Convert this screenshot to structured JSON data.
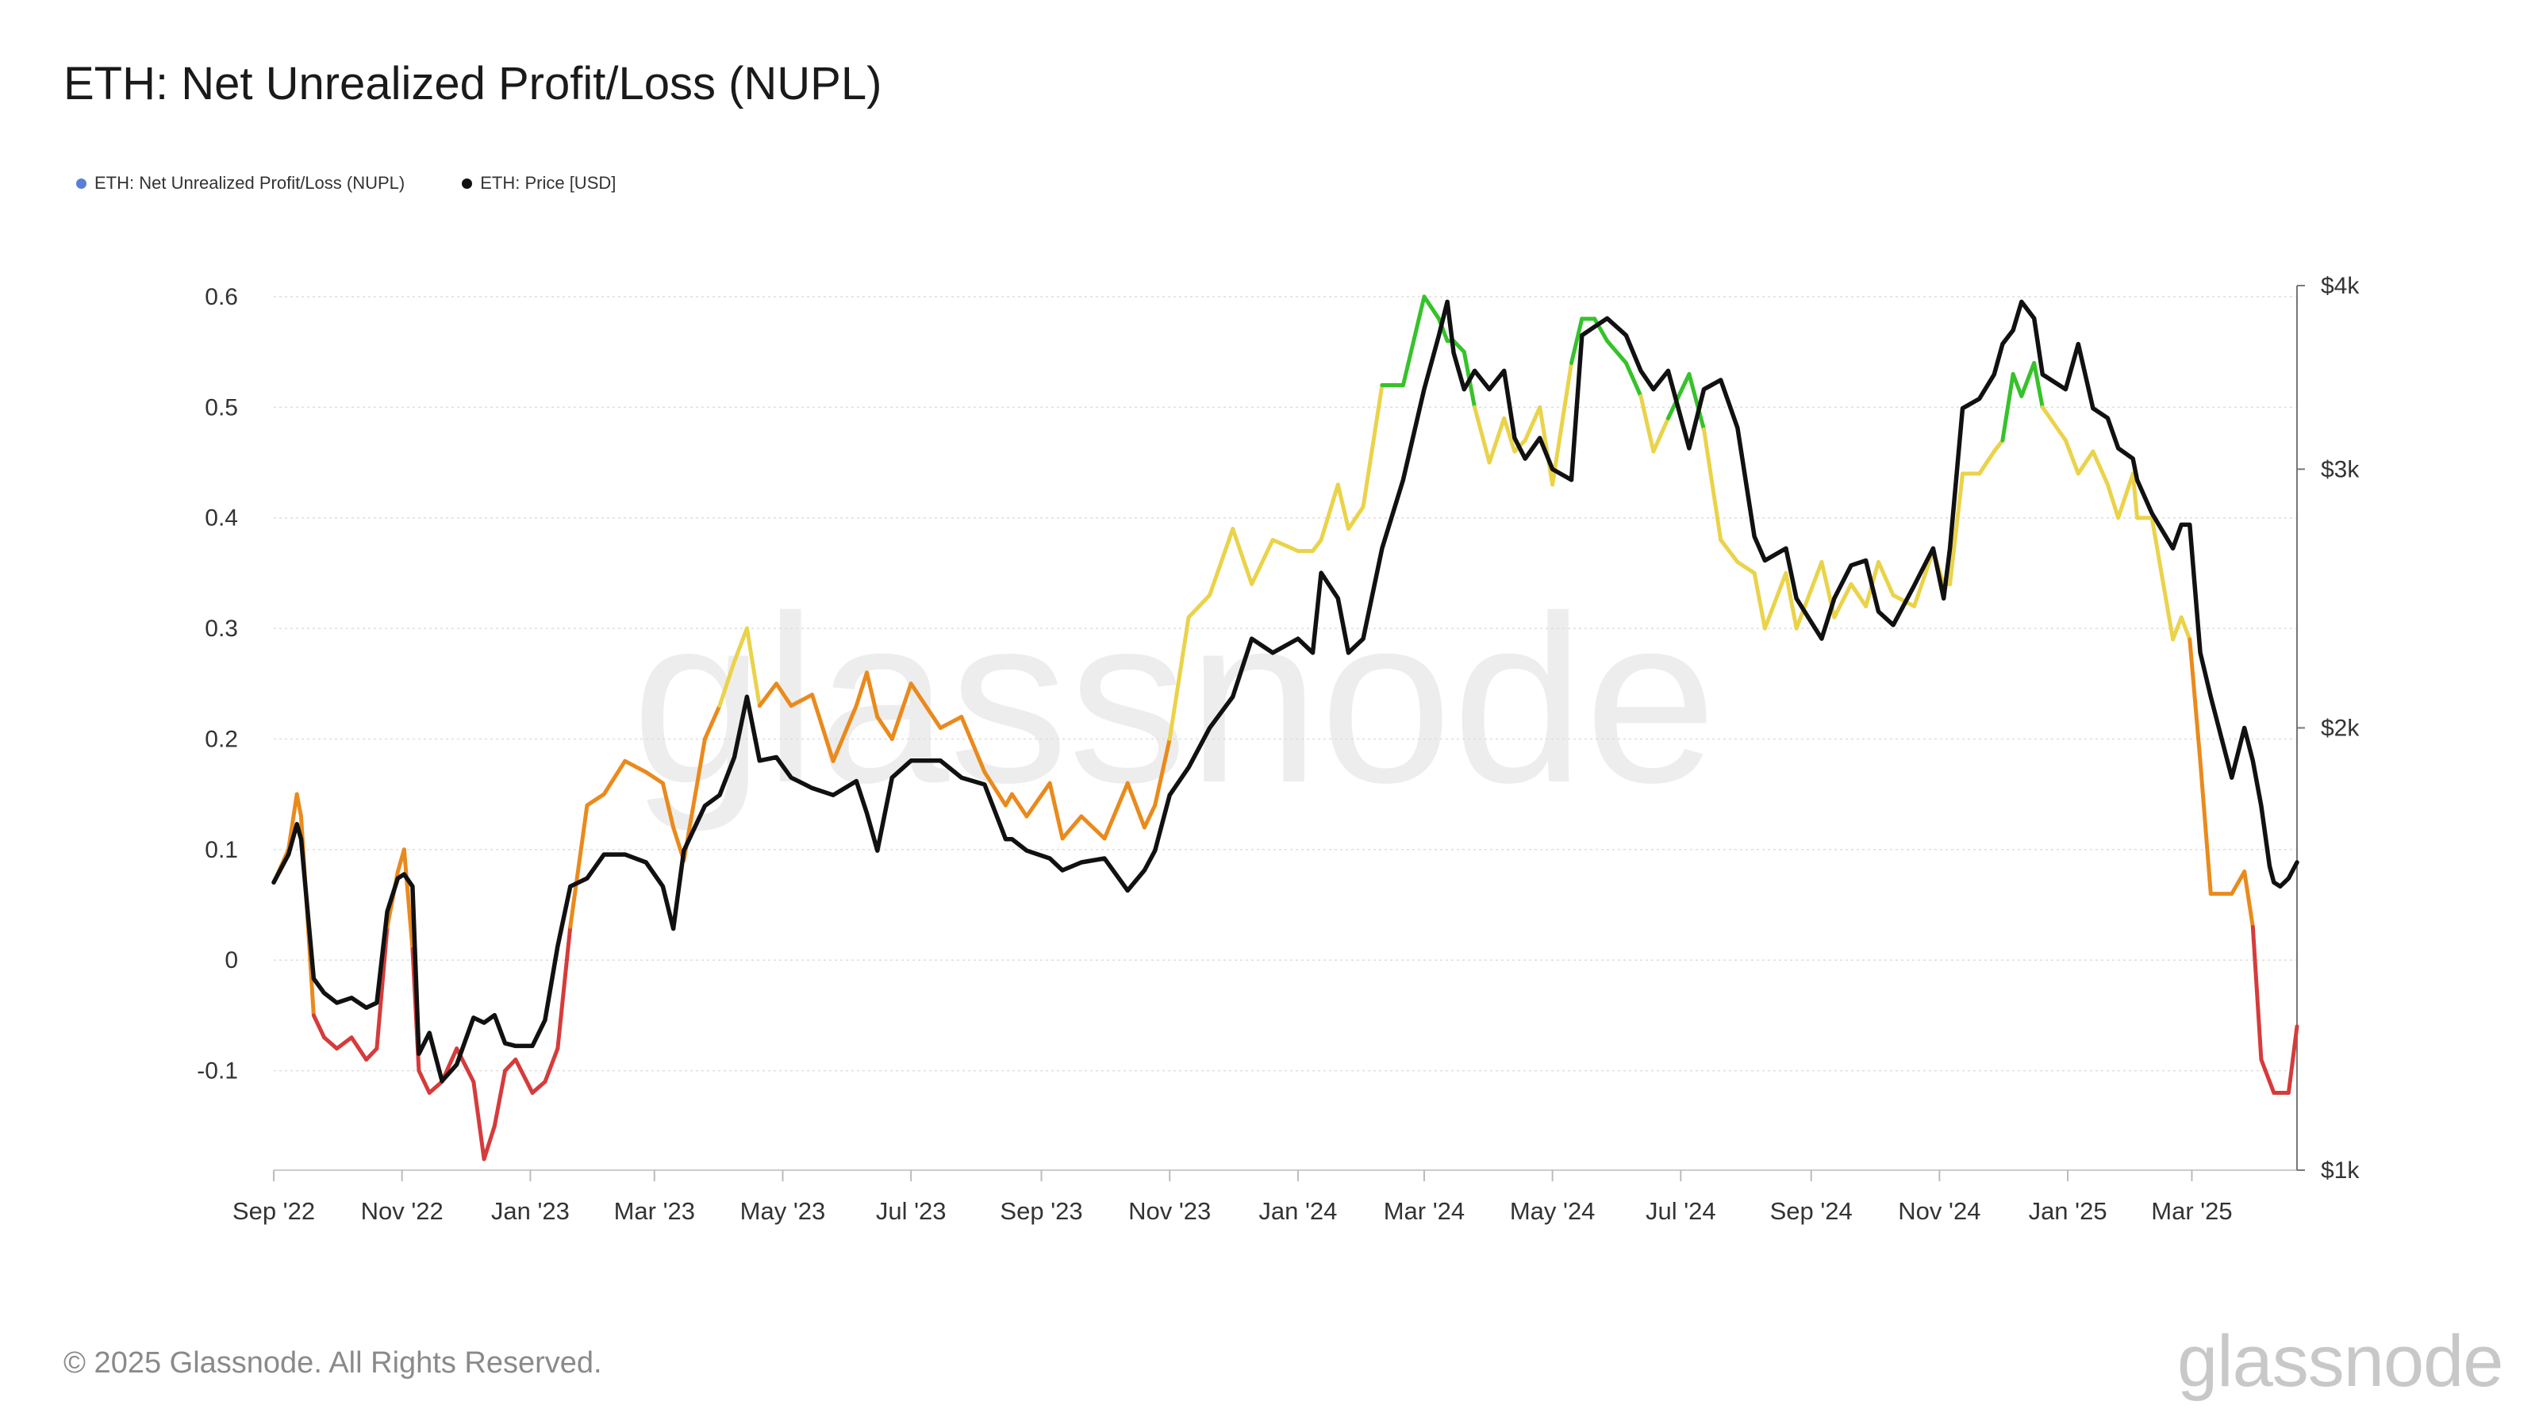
{
  "title": "ETH: Net Unrealized Profit/Loss (NUPL)",
  "legend": [
    {
      "label": "ETH: Net Unrealized Profit/Loss (NUPL)",
      "color": "#5b7fd6"
    },
    {
      "label": "ETH: Price [USD]",
      "color": "#111111"
    }
  ],
  "watermark": "glassnode",
  "copyright": "© 2025 Glassnode. All Rights Reserved.",
  "brand_logo": "glassnode",
  "chart_data": {
    "type": "line",
    "y_left": {
      "ticks": [
        -0.1,
        0,
        0.1,
        0.2,
        0.3,
        0.4,
        0.5,
        0.6
      ],
      "tick_labels": [
        "-0.1",
        "0",
        "0.1",
        "0.2",
        "0.3",
        "0.4",
        "0.5",
        "0.6"
      ],
      "range": [
        -0.19,
        0.61
      ]
    },
    "y_right": {
      "scale": "log",
      "ticks": [
        1000,
        2000,
        3000,
        4000
      ],
      "tick_labels": [
        "$1k",
        "$2k",
        "$3k",
        "$4k"
      ],
      "range": [
        1000,
        4000
      ]
    },
    "x_axis": {
      "labels": [
        "Sep '22",
        "Nov '22",
        "Jan '23",
        "Mar '23",
        "May '23",
        "Jul '23",
        "Sep '23",
        "Nov '23",
        "Jan '24",
        "Mar '24",
        "May '24",
        "Jul '24",
        "Sep '24",
        "Nov '24",
        "Jan '25",
        "Mar '25"
      ],
      "range": [
        "2022-09-01",
        "2025-04-20"
      ]
    },
    "grid": true,
    "legend_position": "top-left",
    "nupl_color_bands": [
      {
        "min": -1,
        "max": 0,
        "color": "#d63b3b"
      },
      {
        "min": 0,
        "max": 0.25,
        "color": "#ea8a1c"
      },
      {
        "min": 0.25,
        "max": 0.5,
        "color": "#ead34a"
      },
      {
        "min": 0.5,
        "max": 1,
        "color": "#36c22a"
      }
    ],
    "series": [
      {
        "name": "ETH: Net Unrealized Profit/Loss (NUPL)",
        "axis": "left",
        "x": [
          "2022-09-01",
          "2022-09-08",
          "2022-09-12",
          "2022-09-14",
          "2022-09-20",
          "2022-09-25",
          "2022-10-01",
          "2022-10-08",
          "2022-10-15",
          "2022-10-20",
          "2022-10-25",
          "2022-10-30",
          "2022-11-02",
          "2022-11-06",
          "2022-11-09",
          "2022-11-14",
          "2022-11-20",
          "2022-11-27",
          "2022-12-05",
          "2022-12-10",
          "2022-12-15",
          "2022-12-20",
          "2022-12-25",
          "2023-01-02",
          "2023-01-08",
          "2023-01-14",
          "2023-01-20",
          "2023-01-28",
          "2023-02-05",
          "2023-02-15",
          "2023-02-25",
          "2023-03-05",
          "2023-03-10",
          "2023-03-15",
          "2023-03-25",
          "2023-04-01",
          "2023-04-08",
          "2023-04-14",
          "2023-04-20",
          "2023-04-28",
          "2023-05-05",
          "2023-05-15",
          "2023-05-25",
          "2023-06-05",
          "2023-06-10",
          "2023-06-15",
          "2023-06-22",
          "2023-07-01",
          "2023-07-15",
          "2023-07-25",
          "2023-08-05",
          "2023-08-15",
          "2023-08-18",
          "2023-08-25",
          "2023-09-05",
          "2023-09-11",
          "2023-09-20",
          "2023-10-01",
          "2023-10-12",
          "2023-10-20",
          "2023-10-25",
          "2023-11-01",
          "2023-11-10",
          "2023-11-20",
          "2023-12-01",
          "2023-12-10",
          "2023-12-20",
          "2024-01-01",
          "2024-01-08",
          "2024-01-12",
          "2024-01-20",
          "2024-01-25",
          "2024-02-01",
          "2024-02-10",
          "2024-02-20",
          "2024-03-01",
          "2024-03-08",
          "2024-03-12",
          "2024-03-15",
          "2024-03-20",
          "2024-03-25",
          "2024-04-01",
          "2024-04-08",
          "2024-04-13",
          "2024-04-18",
          "2024-04-25",
          "2024-05-01",
          "2024-05-10",
          "2024-05-15",
          "2024-05-21",
          "2024-05-27",
          "2024-06-05",
          "2024-06-12",
          "2024-06-18",
          "2024-06-25",
          "2024-07-05",
          "2024-07-12",
          "2024-07-20",
          "2024-07-28",
          "2024-08-05",
          "2024-08-10",
          "2024-08-20",
          "2024-08-25",
          "2024-09-06",
          "2024-09-12",
          "2024-09-20",
          "2024-09-27",
          "2024-10-03",
          "2024-10-10",
          "2024-10-20",
          "2024-10-29",
          "2024-11-03",
          "2024-11-06",
          "2024-11-12",
          "2024-11-20",
          "2024-11-27",
          "2024-12-01",
          "2024-12-06",
          "2024-12-10",
          "2024-12-16",
          "2024-12-20",
          "2024-12-31",
          "2025-01-06",
          "2025-01-13",
          "2025-01-20",
          "2025-01-25",
          "2025-02-01",
          "2025-02-03",
          "2025-02-10",
          "2025-02-20",
          "2025-02-24",
          "2025-02-28",
          "2025-03-05",
          "2025-03-10",
          "2025-03-20",
          "2025-03-26",
          "2025-03-30",
          "2025-04-03",
          "2025-04-07",
          "2025-04-09",
          "2025-04-12",
          "2025-04-16",
          "2025-04-20"
        ],
        "values": [
          0.07,
          0.1,
          0.15,
          0.13,
          -0.05,
          -0.07,
          -0.08,
          -0.07,
          -0.09,
          -0.08,
          0.03,
          0.08,
          0.1,
          0.01,
          -0.1,
          -0.12,
          -0.11,
          -0.08,
          -0.11,
          -0.18,
          -0.15,
          -0.1,
          -0.09,
          -0.12,
          -0.11,
          -0.08,
          0.03,
          0.14,
          0.15,
          0.18,
          0.17,
          0.16,
          0.12,
          0.09,
          0.2,
          0.23,
          0.27,
          0.3,
          0.23,
          0.25,
          0.23,
          0.24,
          0.18,
          0.23,
          0.26,
          0.22,
          0.2,
          0.25,
          0.21,
          0.22,
          0.17,
          0.14,
          0.15,
          0.13,
          0.16,
          0.11,
          0.13,
          0.11,
          0.16,
          0.12,
          0.14,
          0.2,
          0.31,
          0.33,
          0.39,
          0.34,
          0.38,
          0.37,
          0.37,
          0.38,
          0.43,
          0.39,
          0.41,
          0.52,
          0.52,
          0.6,
          0.58,
          0.56,
          0.56,
          0.55,
          0.5,
          0.45,
          0.49,
          0.46,
          0.47,
          0.5,
          0.43,
          0.54,
          0.58,
          0.58,
          0.56,
          0.54,
          0.51,
          0.46,
          0.49,
          0.53,
          0.48,
          0.38,
          0.36,
          0.35,
          0.3,
          0.35,
          0.3,
          0.36,
          0.31,
          0.34,
          0.32,
          0.36,
          0.33,
          0.32,
          0.37,
          0.34,
          0.34,
          0.44,
          0.44,
          0.46,
          0.47,
          0.53,
          0.51,
          0.54,
          0.5,
          0.47,
          0.44,
          0.46,
          0.43,
          0.4,
          0.44,
          0.4,
          0.4,
          0.29,
          0.31,
          0.29,
          0.18,
          0.06,
          0.06,
          0.08,
          0.03,
          -0.09,
          -0.11,
          -0.12,
          -0.12,
          -0.12,
          -0.06
        ]
      },
      {
        "name": "ETH: Price [USD]",
        "axis": "right",
        "color": "#111111",
        "x": [
          "2022-09-01",
          "2022-09-08",
          "2022-09-12",
          "2022-09-14",
          "2022-09-20",
          "2022-09-25",
          "2022-10-01",
          "2022-10-08",
          "2022-10-15",
          "2022-10-20",
          "2022-10-25",
          "2022-10-30",
          "2022-11-02",
          "2022-11-06",
          "2022-11-09",
          "2022-11-14",
          "2022-11-20",
          "2022-11-27",
          "2022-12-05",
          "2022-12-10",
          "2022-12-15",
          "2022-12-20",
          "2022-12-25",
          "2023-01-02",
          "2023-01-08",
          "2023-01-14",
          "2023-01-20",
          "2023-01-28",
          "2023-02-05",
          "2023-02-15",
          "2023-02-25",
          "2023-03-05",
          "2023-03-10",
          "2023-03-15",
          "2023-03-25",
          "2023-04-01",
          "2023-04-08",
          "2023-04-14",
          "2023-04-20",
          "2023-04-28",
          "2023-05-05",
          "2023-05-15",
          "2023-05-25",
          "2023-06-05",
          "2023-06-10",
          "2023-06-15",
          "2023-06-22",
          "2023-07-01",
          "2023-07-15",
          "2023-07-25",
          "2023-08-05",
          "2023-08-15",
          "2023-08-18",
          "2023-08-25",
          "2023-09-05",
          "2023-09-11",
          "2023-09-20",
          "2023-10-01",
          "2023-10-12",
          "2023-10-20",
          "2023-10-25",
          "2023-11-01",
          "2023-11-10",
          "2023-11-20",
          "2023-12-01",
          "2023-12-10",
          "2023-12-20",
          "2024-01-01",
          "2024-01-08",
          "2024-01-12",
          "2024-01-20",
          "2024-01-25",
          "2024-02-01",
          "2024-02-10",
          "2024-02-20",
          "2024-03-01",
          "2024-03-08",
          "2024-03-12",
          "2024-03-15",
          "2024-03-20",
          "2024-03-25",
          "2024-04-01",
          "2024-04-08",
          "2024-04-13",
          "2024-04-18",
          "2024-04-25",
          "2024-05-01",
          "2024-05-10",
          "2024-05-15",
          "2024-05-21",
          "2024-05-27",
          "2024-06-05",
          "2024-06-12",
          "2024-06-18",
          "2024-06-25",
          "2024-07-05",
          "2024-07-12",
          "2024-07-20",
          "2024-07-28",
          "2024-08-05",
          "2024-08-10",
          "2024-08-20",
          "2024-08-25",
          "2024-09-06",
          "2024-09-12",
          "2024-09-20",
          "2024-09-27",
          "2024-10-03",
          "2024-10-10",
          "2024-10-20",
          "2024-10-29",
          "2024-11-03",
          "2024-11-06",
          "2024-11-12",
          "2024-11-20",
          "2024-11-27",
          "2024-12-01",
          "2024-12-06",
          "2024-12-10",
          "2024-12-16",
          "2024-12-20",
          "2024-12-31",
          "2025-01-06",
          "2025-01-13",
          "2025-01-20",
          "2025-01-25",
          "2025-02-01",
          "2025-02-03",
          "2025-02-10",
          "2025-02-20",
          "2025-02-24",
          "2025-02-28",
          "2025-03-05",
          "2025-03-10",
          "2025-03-20",
          "2025-03-26",
          "2025-03-30",
          "2025-04-03",
          "2025-04-07",
          "2025-04-09",
          "2025-04-12",
          "2025-04-16",
          "2025-04-20"
        ],
        "values": [
          1570,
          1640,
          1720,
          1680,
          1350,
          1320,
          1300,
          1310,
          1290,
          1300,
          1500,
          1580,
          1590,
          1560,
          1200,
          1240,
          1150,
          1180,
          1270,
          1260,
          1275,
          1220,
          1215,
          1215,
          1265,
          1420,
          1560,
          1580,
          1640,
          1640,
          1620,
          1560,
          1460,
          1650,
          1770,
          1800,
          1910,
          2100,
          1900,
          1910,
          1850,
          1820,
          1800,
          1840,
          1750,
          1650,
          1850,
          1900,
          1900,
          1850,
          1830,
          1680,
          1680,
          1650,
          1630,
          1600,
          1620,
          1630,
          1550,
          1600,
          1650,
          1800,
          1880,
          2000,
          2100,
          2300,
          2250,
          2300,
          2250,
          2550,
          2450,
          2250,
          2300,
          2650,
          2950,
          3400,
          3700,
          3900,
          3600,
          3400,
          3500,
          3400,
          3500,
          3150,
          3050,
          3150,
          3000,
          2950,
          3700,
          3750,
          3800,
          3700,
          3500,
          3400,
          3500,
          3100,
          3400,
          3450,
          3200,
          2700,
          2600,
          2650,
          2450,
          2300,
          2450,
          2580,
          2600,
          2400,
          2350,
          2500,
          2650,
          2450,
          2650,
          3300,
          3350,
          3480,
          3650,
          3730,
          3900,
          3800,
          3480,
          3400,
          3650,
          3300,
          3250,
          3100,
          3050,
          2950,
          2800,
          2650,
          2750,
          2750,
          2250,
          2100,
          1850,
          2000,
          1900,
          1770,
          1610,
          1570,
          1560,
          1580,
          1620
        ]
      }
    ]
  }
}
